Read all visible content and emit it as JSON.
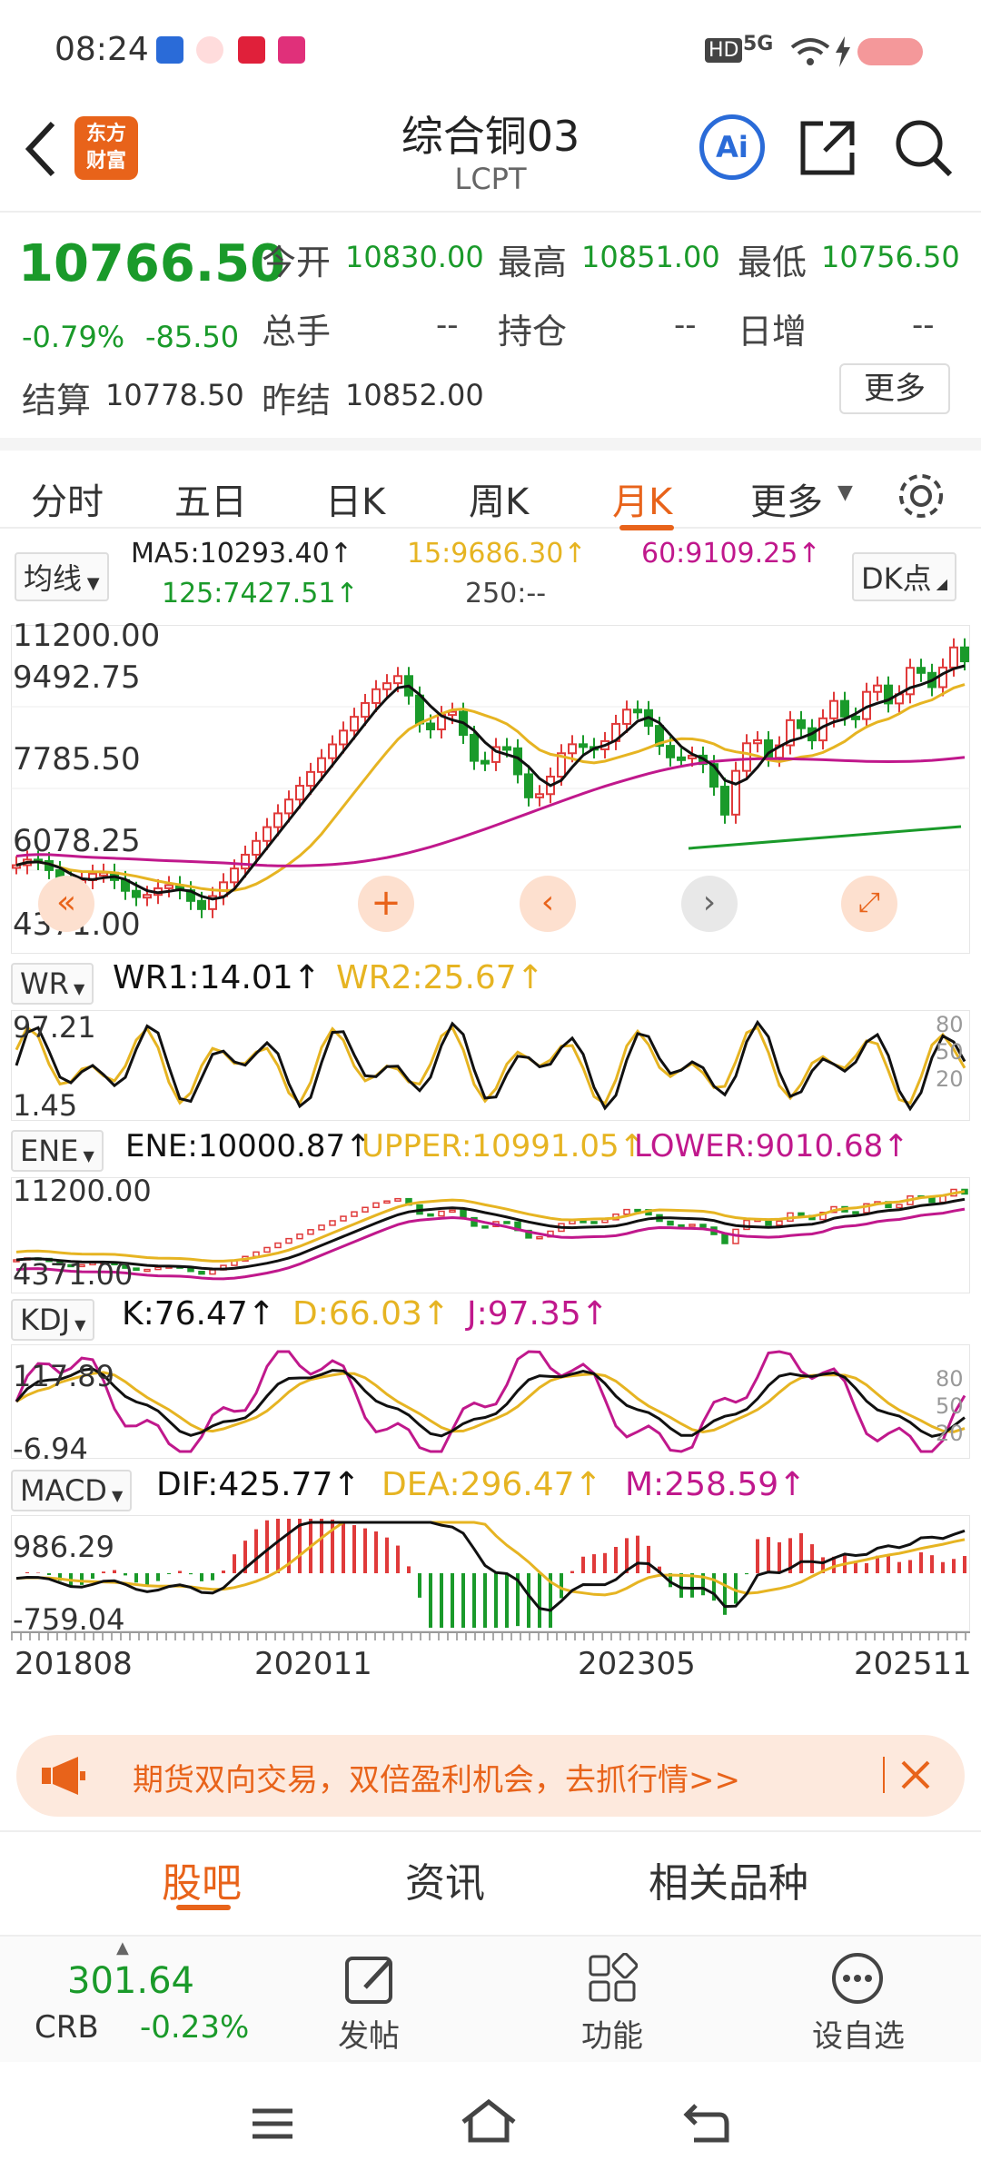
{
  "status": {
    "time": "08:24",
    "hd": "HD",
    "net": "5G"
  },
  "header": {
    "logo": "东方\n财富",
    "title": "综合铜03",
    "code": "LCPT",
    "ai_label": "Ai"
  },
  "quote": {
    "price": "10766.50",
    "change_pct": "-0.79%",
    "change": "-85.50",
    "open_label": "今开",
    "open": "10830.00",
    "high_label": "最高",
    "high": "10851.00",
    "low_label": "最低",
    "low": "10756.50",
    "vol_label": "总手",
    "vol": "--",
    "oi_label": "持仓",
    "oi": "--",
    "daily_label": "日增",
    "daily": "--",
    "settle_label": "结算",
    "settle": "10778.50",
    "prev_settle_label": "昨结",
    "prev_settle": "10852.00",
    "more": "更多"
  },
  "tabs": [
    "分时",
    "五日",
    "日K",
    "周K",
    "月K",
    "更多"
  ],
  "ma": {
    "select": "均线",
    "ma5": "MA5:10293.40↑",
    "ma15": "15:9686.30↑",
    "ma60": "60:9109.25↑",
    "ma125": "125:7427.51↑",
    "ma250": "250:--",
    "dk": "DK点"
  },
  "main_axis": [
    "11200.00",
    "9492.75",
    "7785.50",
    "6078.25",
    "4371.00"
  ],
  "wr": {
    "select": "WR",
    "wr1": "WR1:14.01↑",
    "wr2": "WR2:25.67↑",
    "ticks": [
      "97.21",
      "1.45"
    ],
    "right": [
      "80",
      "50",
      "20"
    ]
  },
  "ene": {
    "select": "ENE",
    "ene": "ENE:10000.87↑",
    "upper": "UPPER:10991.05↑",
    "lower": "LOWER:9010.68↑",
    "ticks": [
      "11200.00",
      "4371.00"
    ]
  },
  "kdj": {
    "select": "KDJ",
    "k": "K:76.47↑",
    "d": "D:66.03↑",
    "j": "J:97.35↑",
    "ticks": [
      "117.89",
      "-6.94"
    ],
    "right": [
      "80",
      "50",
      "20"
    ]
  },
  "macd": {
    "select": "MACD",
    "dif": "DIF:425.77↑",
    "dea": "DEA:296.47↑",
    "m": "M:258.59↑",
    "ticks": [
      "986.29",
      "-759.04"
    ]
  },
  "dates": [
    "201808",
    "202011",
    "202305",
    "202511"
  ],
  "banner": "期货双向交易，双倍盈利机会，去抓行情>>",
  "bottom_tabs": [
    "股吧",
    "资讯",
    "相关品种"
  ],
  "footer": {
    "crb_value": "301.64",
    "crb_label": "CRB",
    "crb_change": "-0.23%",
    "post": "发帖",
    "func": "功能",
    "watch": "设自选"
  },
  "colors": {
    "up": "#e03a3a",
    "down": "#1a9a2a",
    "ma15": "#e6b422",
    "ma60": "#c0188c",
    "accent": "#e8631a"
  }
}
